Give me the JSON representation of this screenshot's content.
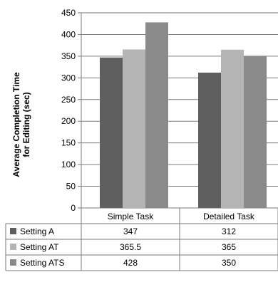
{
  "chart_data": {
    "type": "bar",
    "title": "",
    "xlabel": "",
    "ylabel_lines": [
      "Average Completion Time",
      "for Editing (sec)"
    ],
    "ylim": [
      0,
      450
    ],
    "yticks": [
      0,
      50,
      100,
      150,
      200,
      250,
      300,
      350,
      400,
      450
    ],
    "grid": true,
    "legend": "data-table",
    "categories": [
      "Simple Task",
      "Detailed Task"
    ],
    "series": [
      {
        "name": "Setting A",
        "values": [
          347,
          312
        ],
        "labels": [
          "347",
          "312"
        ],
        "color": "#5f5f5f"
      },
      {
        "name": "Setting AT",
        "values": [
          365.5,
          365
        ],
        "labels": [
          "365.5",
          "365"
        ],
        "color": "#b4b4b4"
      },
      {
        "name": "Setting ATS",
        "values": [
          428,
          350
        ],
        "labels": [
          "428",
          "350"
        ],
        "color": "#8a8a8a"
      }
    ]
  }
}
